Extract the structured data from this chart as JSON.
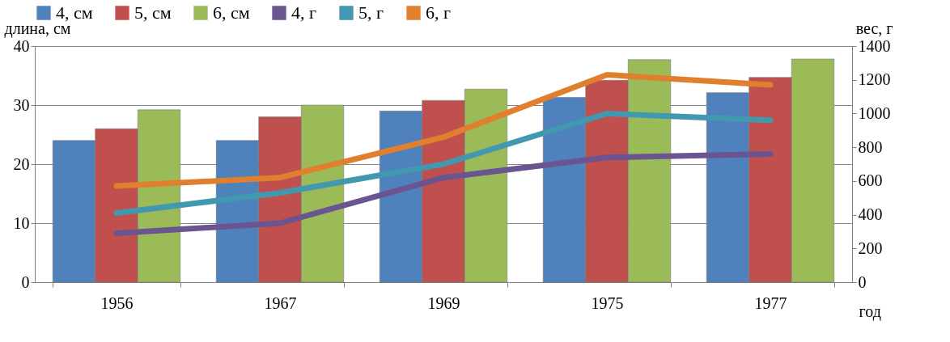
{
  "chart_data": {
    "type": "bar",
    "xlabel": "год",
    "ylabel": "длина, см",
    "y2label": "вес, г",
    "categories": [
      "1956",
      "1967",
      "1969",
      "1975",
      "1977"
    ],
    "series": [
      {
        "name": "4, см",
        "color": "#4f81bd",
        "values": [
          24,
          24,
          29,
          31.3,
          32.1
        ]
      },
      {
        "name": "5, см",
        "color": "#c0504d",
        "values": [
          26,
          28,
          30.8,
          34.2,
          34.7
        ]
      },
      {
        "name": "6, см",
        "color": "#9bbb59",
        "values": [
          29.2,
          30,
          32.7,
          37.7,
          37.8
        ]
      },
      {
        "name": "4, г",
        "type": "line",
        "axis": "y2",
        "color": "#6b5590",
        "values": [
          290,
          350,
          620,
          740,
          760
        ]
      },
      {
        "name": "5, г",
        "type": "line",
        "axis": "y2",
        "color": "#4198af",
        "values": [
          410,
          530,
          700,
          1000,
          960
        ]
      },
      {
        "name": "6, г",
        "type": "line",
        "axis": "y2",
        "color": "#e07f2e",
        "values": [
          570,
          620,
          860,
          1230,
          1170
        ]
      }
    ],
    "ylim": [
      0,
      40
    ],
    "yticks": [
      0,
      10,
      20,
      30,
      40
    ],
    "y2lim": [
      0,
      1400
    ],
    "y2ticks": [
      0,
      200,
      400,
      600,
      800,
      1000,
      1200,
      1400
    ],
    "grid": "y",
    "legend": "top",
    "line_style": "solid"
  }
}
